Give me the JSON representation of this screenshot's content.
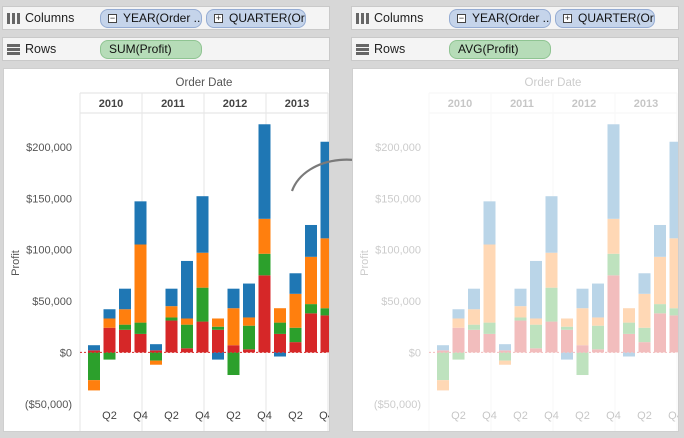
{
  "panels": [
    {
      "columns_label": "Columns",
      "rows_label": "Rows",
      "col_pills": [
        {
          "icon": "minus",
          "text": "YEAR(Order .."
        },
        {
          "icon": "plus",
          "text": "QUARTER(Or.."
        }
      ],
      "row_pill": "SUM(Profit)",
      "faded": false
    },
    {
      "columns_label": "Columns",
      "rows_label": "Rows",
      "col_pills": [
        {
          "icon": "minus",
          "text": "YEAR(Order .."
        },
        {
          "icon": "plus",
          "text": "QUARTER(Or.."
        }
      ],
      "row_pill": "AVG(Profit)",
      "faded": true
    }
  ],
  "colors": {
    "blue": "#1f77b4",
    "orange": "#ff7f0e",
    "green": "#2ca02c",
    "red": "#d62728",
    "arrow": "#7a7a7a",
    "shelf_bg": "#f4f4f4"
  },
  "icons": [
    "columns-shelf-icon",
    "rows-shelf-icon",
    "minus-box-icon",
    "plus-box-icon",
    "curved-arrow-icon"
  ],
  "chart_data": {
    "type": "bar",
    "stacked": true,
    "title": "Order Date",
    "ylabel": "Profit",
    "years": [
      "2010",
      "2011",
      "2012",
      "2013"
    ],
    "x_tick_labels": [
      "Q2",
      "Q4"
    ],
    "ylim": [
      -58000,
      232000
    ],
    "yticks": [
      -50000,
      0,
      50000,
      100000,
      150000,
      200000
    ],
    "ytick_labels": [
      "($50,000)",
      "$0",
      "$50,000",
      "$100,000",
      "$150,000",
      "$200,000"
    ],
    "series_colors": [
      "#d62728",
      "#2ca02c",
      "#ff7f0e",
      "#1f77b4"
    ],
    "bars": [
      [
        [
          0,
          2000
        ],
        [
          0,
          -27000
        ],
        [
          -27000,
          -37000
        ],
        [
          2000,
          7000
        ]
      ],
      [
        [
          0,
          24000
        ],
        [
          0,
          -7000
        ],
        [
          24000,
          33000
        ],
        [
          33000,
          42000
        ]
      ],
      [
        [
          0,
          22000
        ],
        [
          22000,
          27000
        ],
        [
          27000,
          42000
        ],
        [
          42000,
          62000
        ]
      ],
      [
        [
          0,
          18000
        ],
        [
          18000,
          29000
        ],
        [
          29000,
          105000
        ],
        [
          105000,
          147000
        ]
      ],
      [
        [
          0,
          2000
        ],
        [
          0,
          -8000
        ],
        [
          -8000,
          -12000
        ],
        [
          2000,
          8000
        ]
      ],
      [
        [
          0,
          31000
        ],
        [
          31000,
          34000
        ],
        [
          34000,
          45000
        ],
        [
          45000,
          62000
        ]
      ],
      [
        [
          0,
          4000
        ],
        [
          4000,
          27000
        ],
        [
          27000,
          33000
        ],
        [
          33000,
          89000
        ]
      ],
      [
        [
          0,
          30000
        ],
        [
          30000,
          63000
        ],
        [
          63000,
          97000
        ],
        [
          97000,
          152000
        ]
      ],
      [
        [
          0,
          22000
        ],
        [
          22000,
          25000
        ],
        [
          25000,
          33000
        ],
        [
          -7000,
          0
        ]
      ],
      [
        [
          0,
          7000
        ],
        [
          0,
          -22000
        ],
        [
          7000,
          43000
        ],
        [
          43000,
          62000
        ]
      ],
      [
        [
          0,
          3000
        ],
        [
          3000,
          26000
        ],
        [
          26000,
          34000
        ],
        [
          34000,
          67000
        ]
      ],
      [
        [
          0,
          75000
        ],
        [
          75000,
          96000
        ],
        [
          96000,
          130000
        ],
        [
          130000,
          222000
        ]
      ],
      [
        [
          0,
          18000
        ],
        [
          18000,
          29000
        ],
        [
          29000,
          43000
        ],
        [
          -4000,
          0
        ]
      ],
      [
        [
          0,
          10000
        ],
        [
          10000,
          24000
        ],
        [
          24000,
          57000
        ],
        [
          57000,
          77000
        ]
      ],
      [
        [
          0,
          38000
        ],
        [
          38000,
          47000
        ],
        [
          47000,
          93000
        ],
        [
          93000,
          124000
        ]
      ],
      [
        [
          0,
          36000
        ],
        [
          36000,
          43000
        ],
        [
          43000,
          111000
        ],
        [
          111000,
          205000
        ]
      ]
    ]
  }
}
